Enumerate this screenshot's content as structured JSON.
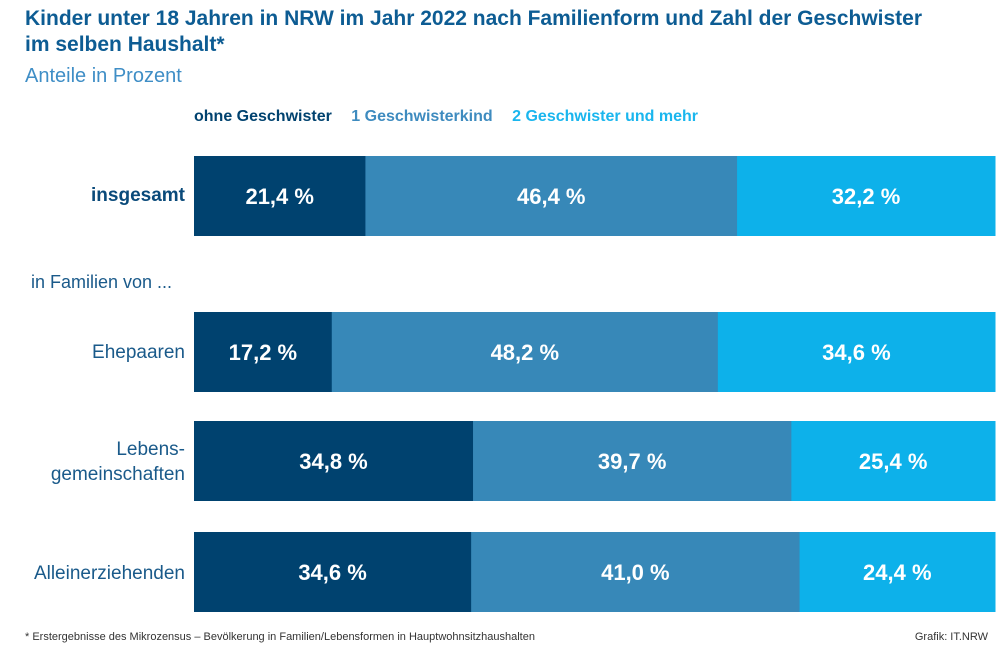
{
  "chart_data": {
    "type": "bar",
    "stacked": true,
    "orientation": "horizontal",
    "title": "Kinder unter 18 Jahren in NRW im Jahr 2022 nach Familienform und Zahl der Geschwister im selben Haushalt*",
    "subtitle": "Anteile in Prozent",
    "group_label": "in Familien von ...",
    "legend_position": "top",
    "categories": [
      "insgesamt",
      "Ehepaaren",
      "Lebens-\ngemeinschaften",
      "Alleinerziehenden"
    ],
    "series": [
      {
        "name": "ohne Geschwister",
        "color": "#00426f",
        "values": [
          21.4,
          17.2,
          34.8,
          34.6
        ],
        "labels": [
          "21,4 %",
          "17,2 %",
          "34,8 %",
          "34,6 %"
        ]
      },
      {
        "name": "1 Geschwisterkind",
        "color": "#3788b8",
        "values": [
          46.4,
          48.2,
          39.7,
          41.0
        ],
        "labels": [
          "46,4 %",
          "48,2 %",
          "39,7 %",
          "41,0 %"
        ]
      },
      {
        "name": "2 Geschwister und mehr",
        "color": "#0db1ea",
        "values": [
          32.2,
          34.6,
          25.4,
          24.4
        ],
        "labels": [
          "32,2 %",
          "34,6 %",
          "25,4 %",
          "24,4 %"
        ]
      }
    ],
    "footnote": "*  Erstergebnisse des Mikrozensus – Bevölkerung in Familien/Lebensformen in Hauptwohnsitzhaushalten",
    "source": "Grafik: IT.NRW"
  }
}
